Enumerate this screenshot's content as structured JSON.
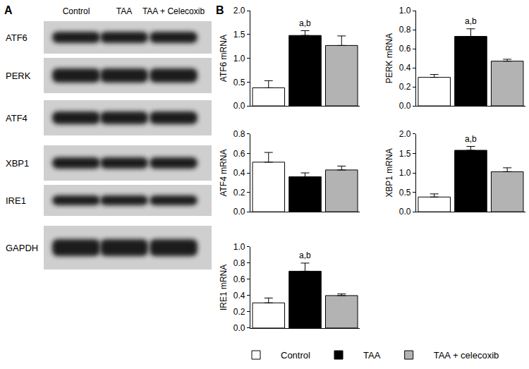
{
  "panel_labels": [
    "A",
    "B"
  ],
  "blot": {
    "lanes": [
      "Control",
      "TAA",
      "TAA + Celecoxib"
    ],
    "rows": [
      "ATF6",
      "PERK",
      "ATF4",
      "XBP1",
      "IRE1",
      "GAPDH"
    ]
  },
  "chart_data": [
    {
      "type": "bar",
      "y_label": "ATF6 mRNA",
      "categories": [
        "Control",
        "TAA",
        "TAA + celecoxib"
      ],
      "colors": [
        "#ffffff",
        "#000000",
        "#b3b3b3"
      ],
      "values": [
        0.38,
        1.48,
        1.27
      ],
      "errors": [
        0.15,
        0.1,
        0.2
      ],
      "ylim": [
        0,
        2
      ],
      "yticks": [
        {
          "value": 0,
          "label": "0.0"
        },
        {
          "value": 0.5,
          "label": "0.5"
        },
        {
          "value": 1,
          "label": "1.0"
        },
        {
          "value": 1.5,
          "label": "1.5"
        },
        {
          "value": 2,
          "label": "2.0"
        }
      ],
      "tick_labels": "y",
      "legend": "bottom",
      "annotations": [
        {
          "category": "TAA",
          "text": "a,b"
        }
      ]
    },
    {
      "type": "bar",
      "y_label": "PERK mRNA",
      "categories": [
        "Control",
        "TAA",
        "TAA + celecoxib"
      ],
      "colors": [
        "#ffffff",
        "#000000",
        "#b3b3b3"
      ],
      "values": [
        0.3,
        0.73,
        0.47
      ],
      "errors": [
        0.03,
        0.08,
        0.02
      ],
      "ylim": [
        0,
        1
      ],
      "yticks": [
        {
          "value": 0,
          "label": "0.0"
        },
        0.2,
        0.4,
        0.6,
        0.8,
        {
          "value": 1,
          "label": "1.0"
        }
      ],
      "tick_labels": "y",
      "annotations": [
        {
          "category": "TAA",
          "text": "a,b"
        }
      ]
    },
    {
      "type": "bar",
      "y_label": "ATF4 mRNA",
      "categories": [
        "Control",
        "TAA",
        "TAA + celecoxib"
      ],
      "colors": [
        "#ffffff",
        "#000000",
        "#b3b3b3"
      ],
      "values": [
        0.51,
        0.36,
        0.43
      ],
      "errors": [
        0.1,
        0.04,
        0.04
      ],
      "ylim": [
        0,
        0.8
      ],
      "yticks": [
        {
          "value": 0,
          "label": "0.0"
        },
        0.2,
        0.4,
        0.6,
        0.8
      ],
      "tick_labels": "y",
      "annotations": []
    },
    {
      "type": "bar",
      "y_label": "XBP1 mRNA",
      "categories": [
        "Control",
        "TAA",
        "TAA + celecoxib"
      ],
      "colors": [
        "#ffffff",
        "#000000",
        "#b3b3b3"
      ],
      "values": [
        0.38,
        1.58,
        1.03
      ],
      "errors": [
        0.08,
        0.1,
        0.1
      ],
      "ylim": [
        0,
        2
      ],
      "yticks": [
        {
          "value": 0,
          "label": "0.0"
        },
        {
          "value": 0.5,
          "label": "0.5"
        },
        {
          "value": 1,
          "label": "1.0"
        },
        {
          "value": 1.5,
          "label": "1.5"
        },
        {
          "value": 2,
          "label": "2.0"
        }
      ],
      "tick_labels": "y",
      "annotations": [
        {
          "category": "TAA",
          "text": "a,b"
        }
      ]
    },
    {
      "type": "bar",
      "y_label": "IRE1 mRNA",
      "categories": [
        "Control",
        "TAA",
        "TAA + celecoxib"
      ],
      "colors": [
        "#ffffff",
        "#000000",
        "#b3b3b3"
      ],
      "values": [
        0.31,
        0.7,
        0.4
      ],
      "errors": [
        0.06,
        0.1,
        0.02
      ],
      "ylim": [
        0,
        1
      ],
      "yticks": [
        {
          "value": 0,
          "label": "0.0"
        },
        0.2,
        0.4,
        0.6,
        0.8,
        {
          "value": 1,
          "label": "1.0"
        }
      ],
      "tick_labels": "y",
      "annotations": [
        {
          "category": "TAA",
          "text": "a,b"
        }
      ]
    }
  ]
}
